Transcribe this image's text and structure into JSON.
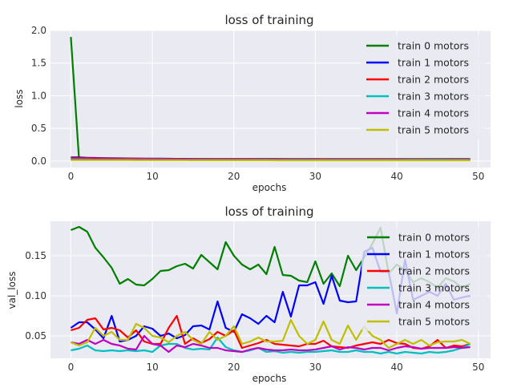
{
  "chart_data": [
    {
      "type": "line",
      "title": "loss of training",
      "xlabel": "epochs",
      "ylabel": "loss",
      "xlim": [
        -2.5,
        51.5
      ],
      "ylim": [
        -0.1,
        2.0
      ],
      "xticks": [
        "0",
        "10",
        "20",
        "30",
        "40",
        "50"
      ],
      "yticks": [
        "0.0",
        "0.5",
        "1.0",
        "1.5",
        "2.0"
      ],
      "grid": true,
      "legend_position": "top-right",
      "x": [
        0,
        1,
        2,
        3,
        4,
        5,
        6,
        7,
        8,
        9,
        10,
        11,
        12,
        13,
        14,
        15,
        16,
        17,
        18,
        19,
        20,
        21,
        22,
        23,
        24,
        25,
        26,
        27,
        28,
        29,
        30,
        31,
        32,
        33,
        34,
        35,
        36,
        37,
        38,
        39,
        40,
        41,
        42,
        43,
        44,
        45,
        46,
        47,
        48,
        49
      ],
      "series": [
        {
          "name": "train 0 motors",
          "color": "#008000",
          "values": [
            1.9,
            0.03,
            0.03,
            0.03,
            0.03,
            0.03,
            0.03,
            0.03,
            0.03,
            0.03,
            0.03,
            0.03,
            0.03,
            0.03,
            0.03,
            0.03,
            0.03,
            0.03,
            0.03,
            0.03,
            0.03,
            0.03,
            0.03,
            0.03,
            0.03,
            0.03,
            0.03,
            0.03,
            0.03,
            0.03,
            0.03,
            0.03,
            0.03,
            0.03,
            0.03,
            0.03,
            0.03,
            0.03,
            0.03,
            0.03,
            0.03,
            0.03,
            0.03,
            0.03,
            0.03,
            0.03,
            0.03,
            0.03,
            0.03,
            0.03
          ]
        },
        {
          "name": "train 1 motors",
          "color": "#0000ff",
          "values": [
            0.055,
            0.055,
            0.05,
            0.047,
            0.045,
            0.043,
            0.041,
            0.04,
            0.039,
            0.038,
            0.037,
            0.036,
            0.035,
            0.034,
            0.034,
            0.033,
            0.033,
            0.032,
            0.032,
            0.031,
            0.031,
            0.031,
            0.03,
            0.03,
            0.03,
            0.03,
            0.029,
            0.029,
            0.029,
            0.029,
            0.029,
            0.028,
            0.028,
            0.028,
            0.028,
            0.028,
            0.028,
            0.027,
            0.027,
            0.027,
            0.027,
            0.027,
            0.027,
            0.027,
            0.026,
            0.026,
            0.026,
            0.026,
            0.026,
            0.026
          ]
        },
        {
          "name": "train 2 motors",
          "color": "#ff0000",
          "values": [
            0.045,
            0.045,
            0.043,
            0.041,
            0.04,
            0.039,
            0.038,
            0.037,
            0.036,
            0.035,
            0.034,
            0.034,
            0.033,
            0.033,
            0.032,
            0.032,
            0.031,
            0.031,
            0.031,
            0.03,
            0.03,
            0.03,
            0.03,
            0.029,
            0.029,
            0.029,
            0.029,
            0.028,
            0.028,
            0.028,
            0.028,
            0.028,
            0.027,
            0.027,
            0.027,
            0.027,
            0.027,
            0.026,
            0.026,
            0.026,
            0.026,
            0.026,
            0.026,
            0.026,
            0.025,
            0.025,
            0.025,
            0.025,
            0.025,
            0.025
          ]
        },
        {
          "name": "train 3 motors",
          "color": "#00bfbf",
          "values": [
            0.03,
            0.03,
            0.029,
            0.028,
            0.028,
            0.027,
            0.027,
            0.027,
            0.026,
            0.026,
            0.026,
            0.026,
            0.025,
            0.025,
            0.025,
            0.025,
            0.025,
            0.024,
            0.024,
            0.024,
            0.024,
            0.024,
            0.024,
            0.023,
            0.023,
            0.023,
            0.023,
            0.023,
            0.023,
            0.023,
            0.022,
            0.022,
            0.022,
            0.022,
            0.022,
            0.022,
            0.022,
            0.022,
            0.021,
            0.021,
            0.021,
            0.021,
            0.021,
            0.021,
            0.021,
            0.021,
            0.021,
            0.02,
            0.02,
            0.02
          ]
        },
        {
          "name": "train 4 motors",
          "color": "#bf00bf",
          "values": [
            0.025,
            0.025,
            0.024,
            0.024,
            0.023,
            0.023,
            0.023,
            0.022,
            0.022,
            0.022,
            0.022,
            0.021,
            0.021,
            0.021,
            0.021,
            0.021,
            0.02,
            0.02,
            0.02,
            0.02,
            0.02,
            0.02,
            0.02,
            0.019,
            0.019,
            0.019,
            0.019,
            0.019,
            0.019,
            0.019,
            0.019,
            0.018,
            0.018,
            0.018,
            0.018,
            0.018,
            0.018,
            0.018,
            0.018,
            0.018,
            0.018,
            0.017,
            0.017,
            0.017,
            0.017,
            0.017,
            0.017,
            0.017,
            0.017,
            0.017
          ]
        },
        {
          "name": "train 5 motors",
          "color": "#bfbf00",
          "values": [
            0.015,
            0.015,
            0.015,
            0.014,
            0.014,
            0.014,
            0.014,
            0.014,
            0.013,
            0.013,
            0.013,
            0.013,
            0.013,
            0.013,
            0.013,
            0.012,
            0.012,
            0.012,
            0.012,
            0.012,
            0.012,
            0.012,
            0.012,
            0.012,
            0.012,
            0.011,
            0.011,
            0.011,
            0.011,
            0.011,
            0.011,
            0.011,
            0.011,
            0.011,
            0.011,
            0.011,
            0.011,
            0.01,
            0.01,
            0.01,
            0.01,
            0.01,
            0.01,
            0.01,
            0.01,
            0.01,
            0.01,
            0.01,
            0.01,
            0.01
          ]
        }
      ]
    },
    {
      "type": "line",
      "title": "loss of training",
      "xlabel": "epochs",
      "ylabel": "val_loss",
      "xlim": [
        -2.5,
        51.5
      ],
      "ylim": [
        0.022,
        0.193
      ],
      "xticks": [
        "0",
        "10",
        "20",
        "30",
        "40",
        "50"
      ],
      "yticks": [
        "0.05",
        "0.10",
        "0.15"
      ],
      "grid": true,
      "legend_position": "top-right",
      "x": [
        0,
        1,
        2,
        3,
        4,
        5,
        6,
        7,
        8,
        9,
        10,
        11,
        12,
        13,
        14,
        15,
        16,
        17,
        18,
        19,
        20,
        21,
        22,
        23,
        24,
        25,
        26,
        27,
        28,
        29,
        30,
        31,
        32,
        33,
        34,
        35,
        36,
        37,
        38,
        39,
        40,
        41,
        42,
        43,
        44,
        45,
        46,
        47,
        48,
        49
      ],
      "series": [
        {
          "name": "train 0 motors",
          "color": "#008000",
          "values": [
            0.182,
            0.186,
            0.18,
            0.16,
            0.148,
            0.135,
            0.115,
            0.121,
            0.114,
            0.113,
            0.121,
            0.131,
            0.132,
            0.137,
            0.14,
            0.134,
            0.151,
            0.142,
            0.133,
            0.167,
            0.15,
            0.139,
            0.133,
            0.139,
            0.127,
            0.161,
            0.126,
            0.125,
            0.119,
            0.117,
            0.143,
            0.115,
            0.128,
            0.112,
            0.15,
            0.132,
            0.148,
            0.165,
            0.185,
            0.128,
            0.139,
            0.132,
            0.117,
            0.122,
            0.117,
            0.11,
            0.122,
            0.118,
            0.11,
            0.115
          ]
        },
        {
          "name": "train 1 motors",
          "color": "#0000ff",
          "values": [
            0.06,
            0.067,
            0.067,
            0.058,
            0.047,
            0.075,
            0.043,
            0.045,
            0.05,
            0.062,
            0.059,
            0.05,
            0.053,
            0.047,
            0.051,
            0.062,
            0.063,
            0.058,
            0.093,
            0.06,
            0.055,
            0.077,
            0.072,
            0.065,
            0.075,
            0.067,
            0.105,
            0.074,
            0.113,
            0.113,
            0.117,
            0.09,
            0.125,
            0.094,
            0.092,
            0.093,
            0.155,
            0.16,
            0.13,
            0.13,
            0.078,
            0.145,
            0.095,
            0.1,
            0.105,
            0.1,
            0.115,
            0.095,
            0.098,
            0.1
          ]
        },
        {
          "name": "train 2 motors",
          "color": "#ff0000",
          "values": [
            0.057,
            0.06,
            0.07,
            0.072,
            0.058,
            0.06,
            0.057,
            0.048,
            0.057,
            0.043,
            0.04,
            0.04,
            0.06,
            0.075,
            0.04,
            0.047,
            0.041,
            0.046,
            0.055,
            0.05,
            0.057,
            0.035,
            0.038,
            0.041,
            0.045,
            0.04,
            0.039,
            0.038,
            0.037,
            0.04,
            0.04,
            0.044,
            0.037,
            0.036,
            0.035,
            0.038,
            0.04,
            0.042,
            0.04,
            0.045,
            0.041,
            0.04,
            0.035,
            0.034,
            0.037,
            0.045,
            0.035,
            0.038,
            0.037,
            0.04
          ]
        },
        {
          "name": "train 3 motors",
          "color": "#00bfbf",
          "values": [
            0.032,
            0.034,
            0.038,
            0.032,
            0.031,
            0.032,
            0.031,
            0.032,
            0.031,
            0.032,
            0.03,
            0.038,
            0.04,
            0.04,
            0.035,
            0.033,
            0.034,
            0.033,
            0.048,
            0.036,
            0.032,
            0.03,
            0.032,
            0.035,
            0.03,
            0.031,
            0.029,
            0.03,
            0.029,
            0.03,
            0.03,
            0.031,
            0.032,
            0.03,
            0.03,
            0.032,
            0.03,
            0.03,
            0.028,
            0.03,
            0.028,
            0.03,
            0.029,
            0.028,
            0.03,
            0.029,
            0.03,
            0.032,
            0.035,
            0.04
          ]
        },
        {
          "name": "train 4 motors",
          "color": "#bf00bf",
          "values": [
            0.042,
            0.04,
            0.045,
            0.04,
            0.045,
            0.04,
            0.038,
            0.034,
            0.033,
            0.05,
            0.04,
            0.038,
            0.03,
            0.038,
            0.036,
            0.04,
            0.038,
            0.035,
            0.035,
            0.032,
            0.031,
            0.03,
            0.033,
            0.035,
            0.033,
            0.032,
            0.032,
            0.033,
            0.032,
            0.032,
            0.033,
            0.035,
            0.037,
            0.033,
            0.036,
            0.035,
            0.033,
            0.035,
            0.035,
            0.032,
            0.035,
            0.037,
            0.036,
            0.034,
            0.035,
            0.035,
            0.035,
            0.036,
            0.035,
            0.036
          ]
        },
        {
          "name": "train 5 motors",
          "color": "#bfbf00",
          "values": [
            0.042,
            0.038,
            0.042,
            0.06,
            0.05,
            0.055,
            0.045,
            0.045,
            0.065,
            0.06,
            0.05,
            0.048,
            0.042,
            0.05,
            0.055,
            0.045,
            0.04,
            0.055,
            0.045,
            0.05,
            0.062,
            0.04,
            0.043,
            0.048,
            0.043,
            0.043,
            0.044,
            0.07,
            0.05,
            0.04,
            0.045,
            0.068,
            0.045,
            0.04,
            0.063,
            0.045,
            0.062,
            0.05,
            0.045,
            0.035,
            0.04,
            0.045,
            0.04,
            0.045,
            0.038,
            0.042,
            0.043,
            0.043,
            0.045,
            0.04
          ]
        }
      ]
    }
  ]
}
